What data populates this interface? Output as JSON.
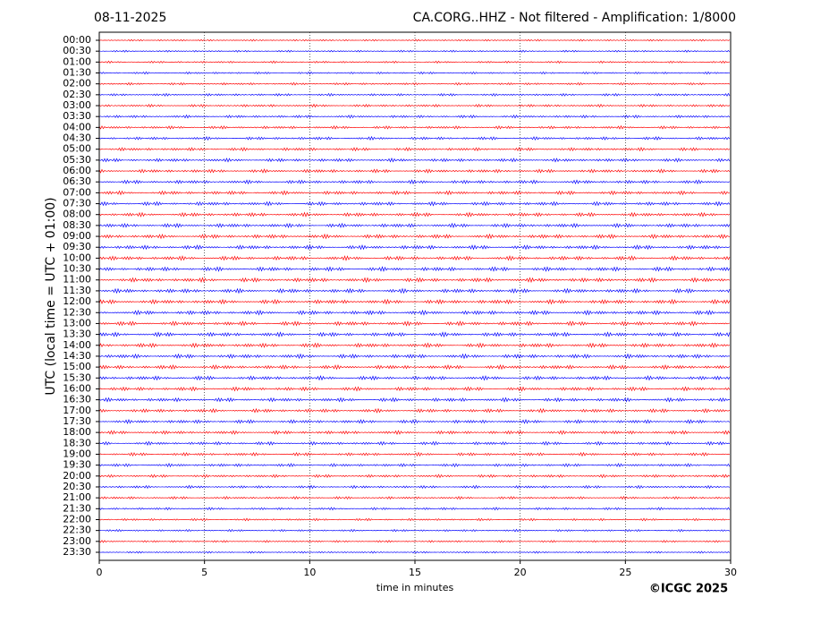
{
  "chart_data": {
    "type": "helicorder",
    "date": "08-11-2025",
    "title": "CA.CORG..HHZ - Not filtered - Amplification: 1/8000",
    "ylabel": "UTC (local time = UTC + 01:00)",
    "xlabel": "time in minutes",
    "copyright": "©ICGC 2025",
    "categories": [
      "00:00",
      "00:30",
      "01:00",
      "01:30",
      "02:00",
      "02:30",
      "03:00",
      "03:30",
      "04:00",
      "04:30",
      "05:00",
      "05:30",
      "06:00",
      "06:30",
      "07:00",
      "07:30",
      "08:00",
      "08:30",
      "09:00",
      "09:30",
      "10:00",
      "10:30",
      "11:00",
      "11:30",
      "12:00",
      "12:30",
      "13:00",
      "13:30",
      "14:00",
      "14:30",
      "15:00",
      "15:30",
      "16:00",
      "16:30",
      "17:00",
      "17:30",
      "18:00",
      "18:30",
      "19:00",
      "19:30",
      "20:00",
      "20:30",
      "21:00",
      "21:30",
      "22:00",
      "22:30",
      "23:00",
      "23:30"
    ],
    "colors": [
      "#ff0000",
      "#0000ff"
    ],
    "xlim": [
      0,
      30
    ],
    "xticks": [
      0,
      5,
      10,
      15,
      20,
      25,
      30
    ],
    "grid": true
  }
}
